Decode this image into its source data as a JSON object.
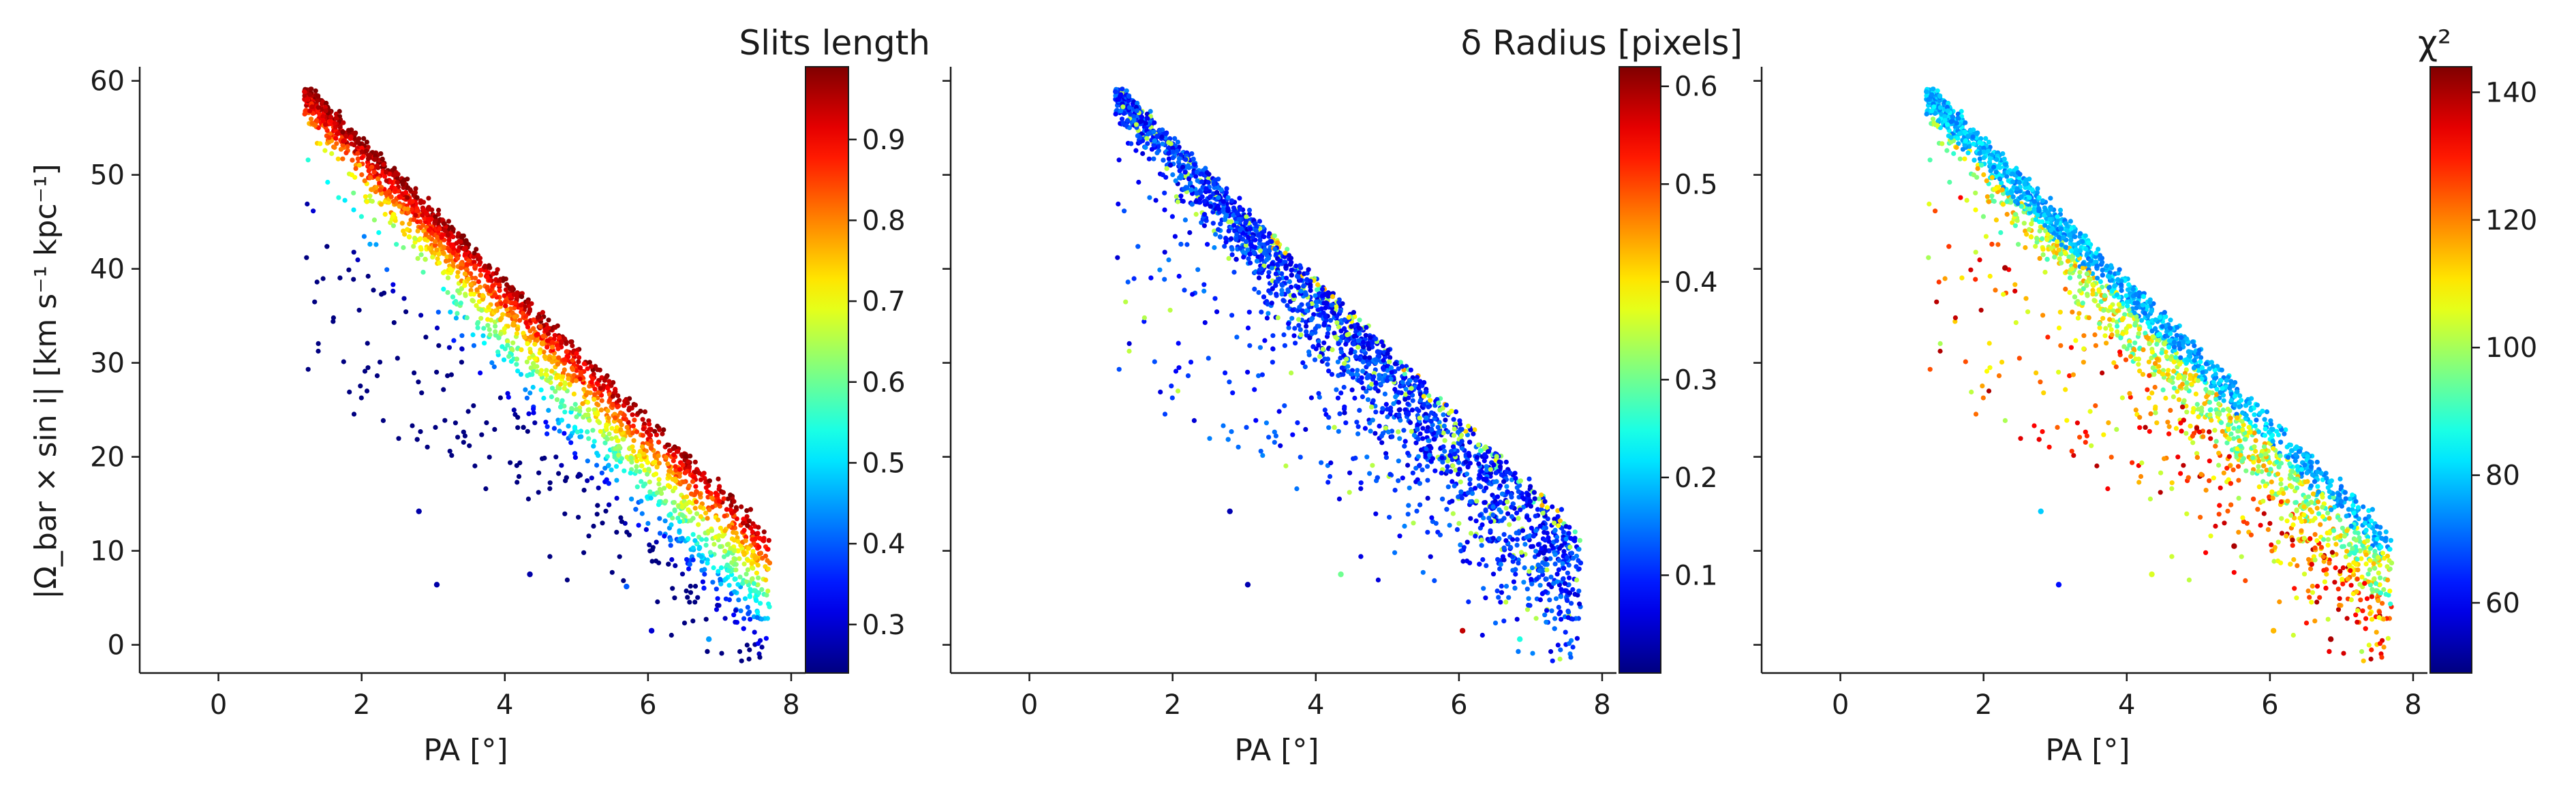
{
  "chart_data": [
    {
      "type": "scatter",
      "xlabel": "PA [°]",
      "ylabel": "|Ω_bar × sin i|   [km s⁻¹ kpc⁻¹]",
      "xlim": [
        -1.1,
        8.2
      ],
      "ylim": [
        -3,
        61.5
      ],
      "xticks": [
        "0",
        "2",
        "4",
        "6",
        "8"
      ],
      "yticks": [
        "0",
        "10",
        "20",
        "30",
        "40",
        "50",
        "60"
      ],
      "colorbar": {
        "title": "Slits length",
        "colormap": "jet",
        "range": [
          0.24,
          0.99
        ],
        "ticks": [
          "0.3",
          "0.4",
          "0.5",
          "0.6",
          "0.7",
          "0.8",
          "0.9"
        ]
      },
      "trend": {
        "x": [
          1.0,
          7.8
        ],
        "y": [
          61,
          11
        ]
      },
      "points_sampled": 2600,
      "outliers": [
        {
          "x": 2.8,
          "y": 14.2,
          "c": 0.27
        },
        {
          "x": 3.05,
          "y": 6.4,
          "c": 0.27
        },
        {
          "x": 4.35,
          "y": 7.5,
          "c": 0.27
        },
        {
          "x": 6.05,
          "y": 1.5,
          "c": 0.3
        },
        {
          "x": 6.85,
          "y": 0.6,
          "c": 0.45
        },
        {
          "x": 5.7,
          "y": 6.2,
          "c": 0.4
        }
      ]
    },
    {
      "type": "scatter",
      "xlabel": "PA [°]",
      "xlim": [
        -1.1,
        8.2
      ],
      "ylim": [
        -3,
        61.5
      ],
      "xticks": [
        "0",
        "2",
        "4",
        "6",
        "8"
      ],
      "colorbar": {
        "title": "δ Radius [pixels]",
        "colormap": "jet",
        "range": [
          0.0,
          0.62
        ],
        "ticks": [
          "0.1",
          "0.2",
          "0.3",
          "0.4",
          "0.5",
          "0.6"
        ]
      },
      "trend": {
        "x": [
          1.0,
          7.8
        ],
        "y": [
          61,
          11
        ]
      },
      "points_sampled": 2600,
      "outliers": [
        {
          "x": 2.8,
          "y": 14.2,
          "c": 0.03
        },
        {
          "x": 3.05,
          "y": 6.4,
          "c": 0.03
        },
        {
          "x": 4.35,
          "y": 7.5,
          "c": 0.3
        },
        {
          "x": 6.05,
          "y": 1.5,
          "c": 0.58
        },
        {
          "x": 6.85,
          "y": 0.6,
          "c": 0.25
        }
      ]
    },
    {
      "type": "scatter",
      "xlabel": "PA [°]",
      "xlim": [
        -1.1,
        8.2
      ],
      "ylim": [
        -3,
        61.5
      ],
      "xticks": [
        "0",
        "2",
        "4",
        "6",
        "8"
      ],
      "colorbar": {
        "title": "χ²",
        "colormap": "jet",
        "range": [
          49,
          144
        ],
        "ticks": [
          "60",
          "80",
          "100",
          "120",
          "140"
        ]
      },
      "trend": {
        "x": [
          1.0,
          7.8
        ],
        "y": [
          61,
          11
        ]
      },
      "points_sampled": 2600,
      "outliers": [
        {
          "x": 2.8,
          "y": 14.2,
          "c": 80
        },
        {
          "x": 3.05,
          "y": 6.4,
          "c": 62
        },
        {
          "x": 4.35,
          "y": 7.5,
          "c": 105
        },
        {
          "x": 6.05,
          "y": 1.5,
          "c": 115
        },
        {
          "x": 6.85,
          "y": 0.6,
          "c": 140
        },
        {
          "x": 2.3,
          "y": 40.1,
          "c": 140
        },
        {
          "x": 5.5,
          "y": 10.5,
          "c": 140
        }
      ]
    }
  ]
}
